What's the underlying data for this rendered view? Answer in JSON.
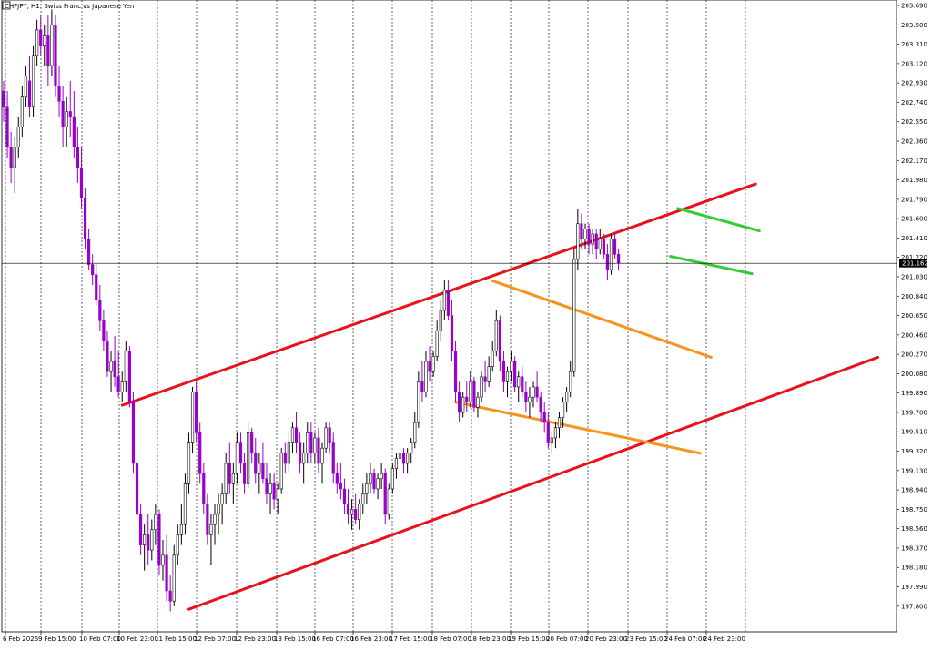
{
  "header": {
    "symbol_title": "CHFJPY, H1:  Swiss Franc vs Japanese Yen"
  },
  "colors": {
    "bull_candle": "#000000",
    "bear_candle": "#9900cc",
    "red_channel": "#e8111e",
    "orange_channel": "#f7941d",
    "green_channel": "#33cc33",
    "grid": "#000000",
    "current_price_bg": "#000000"
  },
  "chart_data": {
    "type": "candlestick",
    "title": "CHFJPY, H1:  Swiss Franc vs Japanese Yen",
    "ylim": [
      197.7,
      203.69
    ],
    "y_ticks": [
      "203.690",
      "203.500",
      "203.310",
      "203.120",
      "202.930",
      "202.740",
      "202.550",
      "202.360",
      "202.170",
      "201.980",
      "201.790",
      "201.600",
      "201.410",
      "201.220",
      "201.030",
      "200.840",
      "200.650",
      "200.460",
      "200.270",
      "200.080",
      "199.890",
      "199.700",
      "199.510",
      "199.320",
      "199.130",
      "198.940",
      "198.750",
      "198.560",
      "198.370",
      "198.180",
      "197.990",
      "197.800"
    ],
    "x_ticks": [
      "6 Feb 2026",
      "9 Feb 15:00",
      "10 Feb 07:00",
      "10 Feb 23:00",
      "11 Feb 15:00",
      "12 Feb 07:00",
      "12 Feb 23:00",
      "13 Feb 15:00",
      "16 Feb 07:00",
      "16 Feb 23:00",
      "17 Feb 15:00",
      "18 Feb 07:00",
      "18 Feb 23:00",
      "19 Feb 15:00",
      "20 Feb 07:00",
      "20 Feb 23:00",
      "23 Feb 15:00",
      "24 Feb 07:00",
      "24 Feb 23:00"
    ],
    "current_price": "201.162",
    "current_price_value": 201.162,
    "trendlines": [
      {
        "color": "red",
        "from": {
          "bar": 32,
          "price": 199.77
        },
        "to": {
          "bar": 203,
          "price": 201.94
        }
      },
      {
        "color": "red",
        "from": {
          "bar": 50,
          "price": 197.77
        },
        "to": {
          "bar": 236,
          "price": 200.24
        }
      },
      {
        "color": "orange",
        "from": {
          "bar": 132,
          "price": 200.99
        },
        "to": {
          "bar": 191,
          "price": 200.24
        }
      },
      {
        "color": "orange",
        "from": {
          "bar": 122,
          "price": 199.8
        },
        "to": {
          "bar": 188,
          "price": 199.3
        }
      },
      {
        "color": "green",
        "from": {
          "bar": 182,
          "price": 201.7
        },
        "to": {
          "bar": 204,
          "price": 201.48
        }
      },
      {
        "color": "green",
        "from": {
          "bar": 180,
          "price": 201.23
        },
        "to": {
          "bar": 202,
          "price": 201.06
        }
      }
    ],
    "candles_ohlc": [
      [
        202.85,
        202.95,
        202.55,
        202.7
      ],
      [
        202.7,
        202.85,
        202.2,
        202.3
      ],
      [
        202.3,
        202.45,
        201.95,
        202.1
      ],
      [
        202.1,
        202.4,
        201.85,
        202.3
      ],
      [
        202.3,
        202.6,
        202.2,
        202.5
      ],
      [
        202.5,
        202.9,
        202.4,
        202.8
      ],
      [
        202.8,
        203.1,
        202.7,
        203.0
      ],
      [
        202.95,
        203.2,
        202.6,
        202.7
      ],
      [
        202.7,
        203.3,
        202.6,
        203.2
      ],
      [
        203.2,
        203.55,
        203.1,
        203.45
      ],
      [
        203.45,
        203.6,
        203.2,
        203.3
      ],
      [
        203.3,
        203.5,
        203.1,
        203.4
      ],
      [
        203.4,
        203.6,
        202.9,
        203.1
      ],
      [
        203.1,
        203.65,
        203.0,
        203.5
      ],
      [
        203.5,
        203.6,
        202.8,
        202.9
      ],
      [
        202.9,
        203.1,
        202.6,
        202.75
      ],
      [
        202.75,
        202.9,
        202.3,
        202.5
      ],
      [
        202.5,
        202.8,
        202.3,
        202.65
      ],
      [
        202.65,
        202.95,
        202.4,
        202.6
      ],
      [
        202.6,
        202.85,
        202.2,
        202.3
      ],
      [
        202.3,
        202.5,
        201.95,
        202.1
      ],
      [
        202.1,
        202.3,
        201.7,
        201.8
      ],
      [
        201.8,
        201.9,
        201.3,
        201.4
      ],
      [
        201.4,
        201.5,
        201.1,
        201.15
      ],
      [
        201.15,
        201.25,
        200.95,
        201.05
      ],
      [
        201.05,
        201.15,
        200.75,
        200.8
      ],
      [
        200.8,
        200.95,
        200.5,
        200.6
      ],
      [
        200.6,
        200.7,
        200.3,
        200.4
      ],
      [
        200.4,
        200.5,
        200.05,
        200.1
      ],
      [
        200.1,
        200.3,
        199.9,
        200.2
      ],
      [
        200.2,
        200.45,
        199.95,
        200.05
      ],
      [
        200.05,
        200.3,
        199.85,
        199.9
      ],
      [
        199.9,
        200.1,
        199.8,
        200.0
      ],
      [
        200.0,
        200.4,
        199.9,
        200.3
      ],
      [
        200.3,
        200.35,
        199.75,
        199.8
      ],
      [
        199.8,
        199.9,
        199.1,
        199.2
      ],
      [
        199.2,
        199.3,
        198.6,
        198.7
      ],
      [
        198.7,
        198.8,
        198.3,
        198.4
      ],
      [
        198.4,
        198.6,
        198.15,
        198.5
      ],
      [
        198.5,
        198.7,
        198.2,
        198.35
      ],
      [
        198.35,
        198.65,
        198.25,
        198.55
      ],
      [
        198.55,
        198.8,
        198.4,
        198.7
      ],
      [
        198.7,
        198.75,
        198.1,
        198.2
      ],
      [
        198.2,
        198.45,
        198.05,
        198.3
      ],
      [
        198.3,
        198.5,
        197.85,
        197.95
      ],
      [
        197.95,
        198.1,
        197.75,
        197.85
      ],
      [
        197.85,
        198.4,
        197.8,
        198.3
      ],
      [
        198.3,
        198.6,
        198.2,
        198.5
      ],
      [
        198.5,
        198.8,
        198.4,
        198.6
      ],
      [
        198.6,
        199.1,
        198.5,
        199.0
      ],
      [
        199.0,
        199.5,
        198.9,
        199.4
      ],
      [
        199.4,
        199.95,
        199.3,
        199.9
      ],
      [
        199.9,
        200.0,
        199.4,
        199.5
      ],
      [
        199.5,
        199.6,
        199.0,
        199.1
      ],
      [
        199.1,
        199.2,
        198.7,
        198.8
      ],
      [
        198.8,
        198.9,
        198.4,
        198.5
      ],
      [
        198.5,
        198.7,
        198.2,
        198.6
      ],
      [
        198.6,
        198.8,
        198.4,
        198.7
      ],
      [
        198.7,
        198.9,
        198.5,
        198.8
      ],
      [
        198.8,
        199.0,
        198.6,
        198.9
      ],
      [
        198.9,
        199.3,
        198.8,
        199.2
      ],
      [
        199.2,
        199.4,
        198.9,
        199.0
      ],
      [
        199.0,
        199.2,
        198.8,
        199.1
      ],
      [
        199.1,
        199.5,
        199.0,
        199.4
      ],
      [
        199.4,
        199.5,
        199.1,
        199.2
      ],
      [
        199.2,
        199.3,
        198.9,
        199.0
      ],
      [
        199.0,
        199.6,
        198.95,
        199.5
      ],
      [
        199.5,
        199.55,
        199.2,
        199.3
      ],
      [
        199.3,
        199.45,
        199.0,
        199.1
      ],
      [
        199.1,
        199.3,
        198.9,
        199.2
      ],
      [
        199.2,
        199.4,
        199.0,
        199.05
      ],
      [
        199.05,
        199.2,
        198.8,
        198.9
      ],
      [
        198.9,
        199.1,
        198.7,
        199.0
      ],
      [
        199.0,
        199.1,
        198.75,
        198.85
      ],
      [
        198.85,
        199.0,
        198.7,
        198.95
      ],
      [
        198.95,
        199.35,
        198.9,
        199.3
      ],
      [
        199.3,
        199.4,
        199.1,
        199.2
      ],
      [
        199.2,
        199.5,
        199.1,
        199.4
      ],
      [
        199.4,
        199.6,
        199.3,
        199.55
      ],
      [
        199.55,
        199.7,
        199.3,
        199.4
      ],
      [
        199.4,
        199.5,
        199.1,
        199.2
      ],
      [
        199.2,
        199.4,
        199.0,
        199.3
      ],
      [
        199.3,
        199.6,
        199.2,
        199.5
      ],
      [
        199.5,
        199.6,
        199.2,
        199.3
      ],
      [
        199.3,
        199.5,
        199.2,
        199.45
      ],
      [
        199.45,
        199.55,
        199.1,
        199.2
      ],
      [
        199.2,
        199.4,
        199.0,
        199.35
      ],
      [
        199.35,
        199.6,
        199.3,
        199.55
      ],
      [
        199.55,
        199.6,
        199.3,
        199.4
      ],
      [
        199.4,
        199.5,
        199.0,
        199.1
      ],
      [
        199.1,
        199.2,
        198.9,
        199.0
      ],
      [
        199.0,
        199.2,
        198.85,
        198.95
      ],
      [
        198.95,
        199.05,
        198.7,
        198.8
      ],
      [
        198.8,
        198.95,
        198.6,
        198.7
      ],
      [
        198.7,
        198.85,
        198.55,
        198.75
      ],
      [
        198.75,
        198.9,
        198.6,
        198.65
      ],
      [
        198.65,
        198.85,
        198.55,
        198.8
      ],
      [
        198.8,
        199.0,
        198.7,
        198.9
      ],
      [
        198.9,
        199.1,
        198.8,
        199.0
      ],
      [
        199.0,
        199.2,
        198.9,
        199.1
      ],
      [
        199.1,
        199.15,
        198.9,
        198.95
      ],
      [
        198.95,
        199.1,
        198.85,
        199.05
      ],
      [
        199.05,
        199.2,
        198.95,
        199.1
      ],
      [
        199.1,
        199.15,
        198.6,
        198.7
      ],
      [
        198.7,
        199.0,
        198.65,
        198.95
      ],
      [
        198.95,
        199.2,
        198.9,
        199.15
      ],
      [
        199.15,
        199.3,
        199.05,
        199.25
      ],
      [
        199.25,
        199.4,
        199.15,
        199.3
      ],
      [
        199.3,
        199.35,
        199.1,
        199.2
      ],
      [
        199.2,
        199.35,
        199.1,
        199.3
      ],
      [
        199.3,
        199.45,
        199.2,
        199.4
      ],
      [
        199.4,
        199.7,
        199.35,
        199.6
      ],
      [
        199.6,
        200.1,
        199.55,
        200.0
      ],
      [
        200.0,
        200.2,
        199.8,
        199.9
      ],
      [
        199.9,
        200.3,
        199.85,
        200.2
      ],
      [
        200.2,
        200.35,
        200.0,
        200.1
      ],
      [
        200.1,
        200.3,
        200.05,
        200.25
      ],
      [
        200.25,
        200.6,
        200.2,
        200.5
      ],
      [
        200.5,
        200.8,
        200.4,
        200.7
      ],
      [
        200.7,
        201.0,
        200.6,
        200.9
      ],
      [
        200.9,
        201.0,
        200.6,
        200.65
      ],
      [
        200.65,
        200.8,
        200.2,
        200.3
      ],
      [
        200.3,
        200.4,
        199.8,
        199.9
      ],
      [
        199.9,
        200.0,
        199.6,
        199.7
      ],
      [
        199.7,
        199.9,
        199.65,
        199.85
      ],
      [
        199.85,
        200.0,
        199.7,
        199.8
      ],
      [
        199.8,
        200.1,
        199.75,
        200.0
      ],
      [
        200.0,
        200.05,
        199.7,
        199.75
      ],
      [
        199.75,
        199.9,
        199.65,
        199.85
      ],
      [
        199.85,
        200.1,
        199.8,
        200.05
      ],
      [
        200.05,
        200.2,
        199.9,
        200.0
      ],
      [
        200.0,
        200.25,
        199.95,
        200.15
      ],
      [
        200.15,
        200.4,
        200.1,
        200.3
      ],
      [
        200.3,
        200.7,
        200.25,
        200.6
      ],
      [
        200.6,
        200.65,
        200.1,
        200.2
      ],
      [
        200.2,
        200.3,
        199.9,
        200.0
      ],
      [
        200.0,
        200.15,
        199.85,
        200.1
      ],
      [
        200.1,
        200.3,
        200.0,
        200.2
      ],
      [
        200.2,
        200.25,
        199.9,
        199.95
      ],
      [
        199.95,
        200.1,
        199.8,
        200.05
      ],
      [
        200.05,
        200.15,
        199.85,
        199.9
      ],
      [
        199.9,
        200.0,
        199.7,
        199.8
      ],
      [
        199.8,
        199.95,
        199.65,
        199.85
      ],
      [
        199.85,
        200.0,
        199.75,
        199.95
      ],
      [
        199.95,
        200.1,
        199.8,
        199.85
      ],
      [
        199.85,
        199.9,
        199.6,
        199.7
      ],
      [
        199.7,
        199.8,
        199.5,
        199.6
      ],
      [
        199.6,
        199.7,
        199.35,
        199.4
      ],
      [
        199.4,
        199.5,
        199.3,
        199.45
      ],
      [
        199.45,
        199.6,
        199.35,
        199.55
      ],
      [
        199.55,
        199.7,
        199.45,
        199.65
      ],
      [
        199.65,
        199.85,
        199.55,
        199.8
      ],
      [
        199.8,
        199.95,
        199.7,
        199.9
      ],
      [
        199.9,
        200.2,
        199.85,
        200.1
      ],
      [
        200.1,
        201.3,
        200.05,
        201.2
      ],
      [
        201.2,
        201.7,
        201.1,
        201.55
      ],
      [
        201.55,
        201.65,
        201.3,
        201.4
      ],
      [
        201.4,
        201.55,
        201.3,
        201.5
      ],
      [
        201.5,
        201.55,
        201.25,
        201.35
      ],
      [
        201.35,
        201.5,
        201.25,
        201.45
      ],
      [
        201.45,
        201.5,
        201.2,
        201.3
      ],
      [
        201.3,
        201.5,
        201.25,
        201.4
      ],
      [
        201.4,
        201.45,
        201.2,
        201.25
      ],
      [
        201.25,
        201.35,
        201.0,
        201.1
      ],
      [
        201.1,
        201.45,
        201.05,
        201.4
      ],
      [
        201.4,
        201.45,
        201.2,
        201.25
      ],
      [
        201.25,
        201.3,
        201.1,
        201.162
      ]
    ]
  }
}
